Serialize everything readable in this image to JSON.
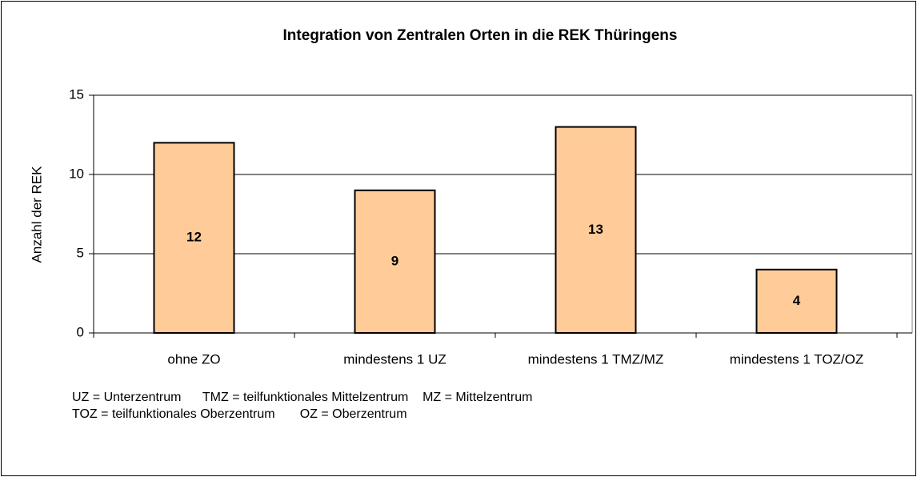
{
  "chart_data": {
    "type": "bar",
    "title": "Integration von Zentralen Orten in die REK Thüringens",
    "y_label": "Anzahl der REK",
    "categories": [
      "ohne ZO",
      "mindestens 1 UZ",
      "mindestens 1 TMZ/MZ",
      "mindestens 1 TOZ/OZ"
    ],
    "values": [
      12,
      9,
      13,
      4
    ],
    "color": "#ffcc99",
    "ylim": [
      0,
      15
    ],
    "yticks": [
      0,
      5,
      10,
      15
    ],
    "grid": true,
    "notes": [
      "UZ = Unterzentrum      TMZ = teilfunktionales Mittelzentrum    MZ = Mittelzentrum",
      "TOZ = teilfunktionales Oberzentrum       OZ = Oberzentrum"
    ]
  }
}
